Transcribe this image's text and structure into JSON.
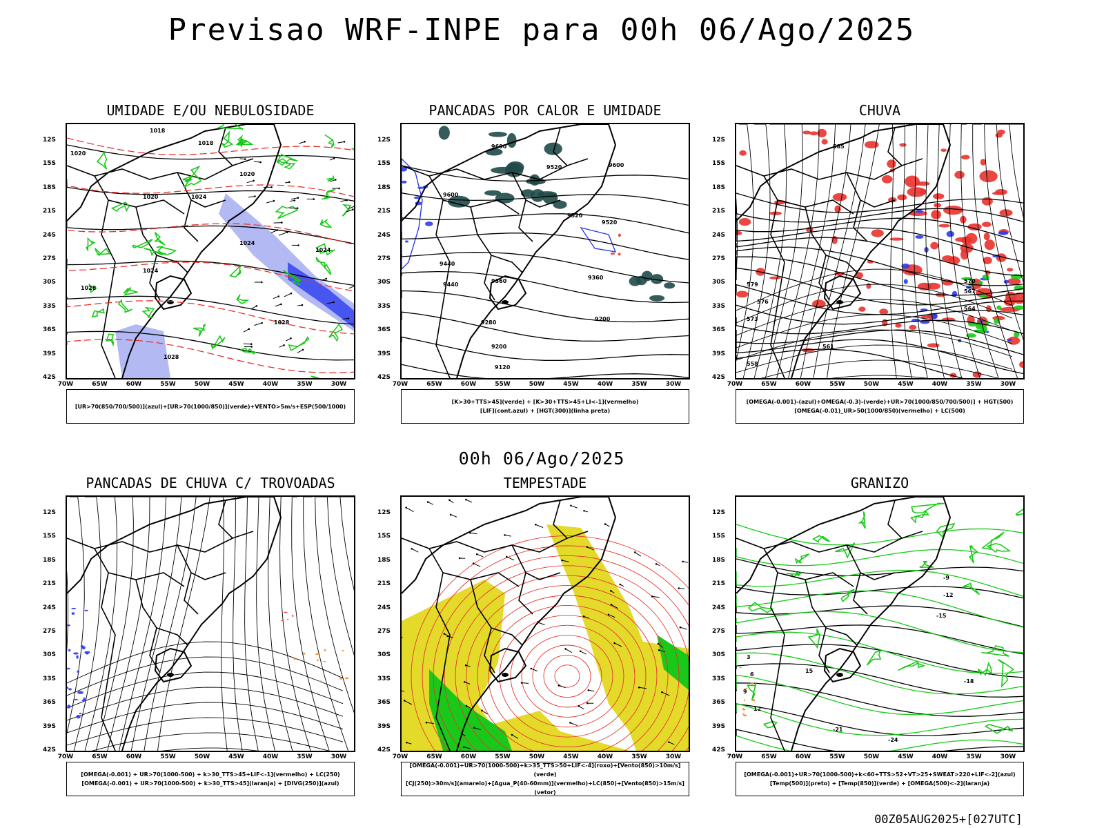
{
  "title": "Previsao WRF-INPE  para 00h 06/Ago/2025",
  "mid_title": "00h 06/Ago/2025",
  "footer": "00Z05AUG2025+[027UTC]",
  "y_labels": [
    "12S",
    "15S",
    "18S",
    "21S",
    "24S",
    "27S",
    "30S",
    "33S",
    "36S",
    "39S",
    "42S"
  ],
  "x_labels": [
    "70W",
    "65W",
    "60W",
    "55W",
    "50W",
    "45W",
    "40W",
    "35W",
    "30W"
  ],
  "panels": [
    {
      "title": "UMIDADE E/OU NEBULOSIDADE",
      "legend": [
        "[UR>70(850/700/500)](azul)+[UR>70(1000/850)](verde)+VENTO>5m/s+ESP(500/1000)"
      ],
      "contours": [
        "1018",
        "1018",
        "1020",
        "1020",
        "1020",
        "1024",
        "1024",
        "1024",
        "1024",
        "1028",
        "1028",
        "1028"
      ]
    },
    {
      "title": "PANCADAS POR CALOR E UMIDADE",
      "legend": [
        "[K>30+TTS>45](verde) + [K>30+TTS>45+LI<-1](vermelho)",
        "[LIF](cont.azul) + [HGT(300)](linha preta)"
      ],
      "contours": [
        "9600",
        "9600",
        "9600",
        "9520",
        "9520",
        "9520",
        "9440",
        "9440",
        "9360",
        "9360",
        "9280",
        "9200",
        "9200",
        "9120"
      ]
    },
    {
      "title": "CHUVA",
      "legend": [
        "[OMEGA(-0.001)-(azul)+OMEGA(-0.3)-(verde)+UR>70(1000/850/700/500)] + HGT(500)",
        "[OMEGA(-0.01)_UR>50(1000/850)(vermelho) + LC(500)"
      ],
      "contours": [
        "585",
        "579",
        "576",
        "573",
        "570",
        "567",
        "564",
        "561",
        "558"
      ]
    },
    {
      "title": "PANCADAS DE CHUVA C/ TROVOADAS",
      "legend": [
        "[OMEGA(-0.001) + UR>70(1000-500) + k>30_TTS>45+LIF<-1](vermelho) + LC(250)",
        "[OMEGA(-0.001) + UR>70(1000-500) + k>30_TTS>45](laranja) + [DIVG(250)](azul)"
      ],
      "contours": []
    },
    {
      "title": "TEMPESTADE",
      "legend": [
        "[OMEGA(-0.001)+UR>70(1000-500)+k>35_TTS>50+LIF<-4](roxo)+[Vento(850)>10m/s](verde)",
        "[CJ(250)>30m/s](amarelo)+[Agua_P(40-60mm)](vermelho)+LC(850)+[Vento(850)>15m/s](vetor)"
      ],
      "contours": []
    },
    {
      "title": "GRANIZO",
      "legend": [
        "[OMEGA(-0.001)+UR>70(1000-500)+k<60+TTS>52+VT>25+SWEAT>220+LIF<-2](azul)",
        "[Temp(500)](preto) + [Temp(850)](verde) + [OMEGA(500)<-2](laranja)"
      ],
      "contours": [
        "-9",
        "-12",
        "-15",
        "-18",
        "-21",
        "-24",
        "3",
        "6",
        "9",
        "12",
        "15"
      ]
    }
  ],
  "colors": {
    "green": "#19c919",
    "red": "#e8332d",
    "blue": "#2c3cf0",
    "lightblue": "#9fa8f0",
    "darkteal": "#1f4a48",
    "yellow": "#e3da2a",
    "orange": "#f08a1e",
    "black": "#000000"
  }
}
